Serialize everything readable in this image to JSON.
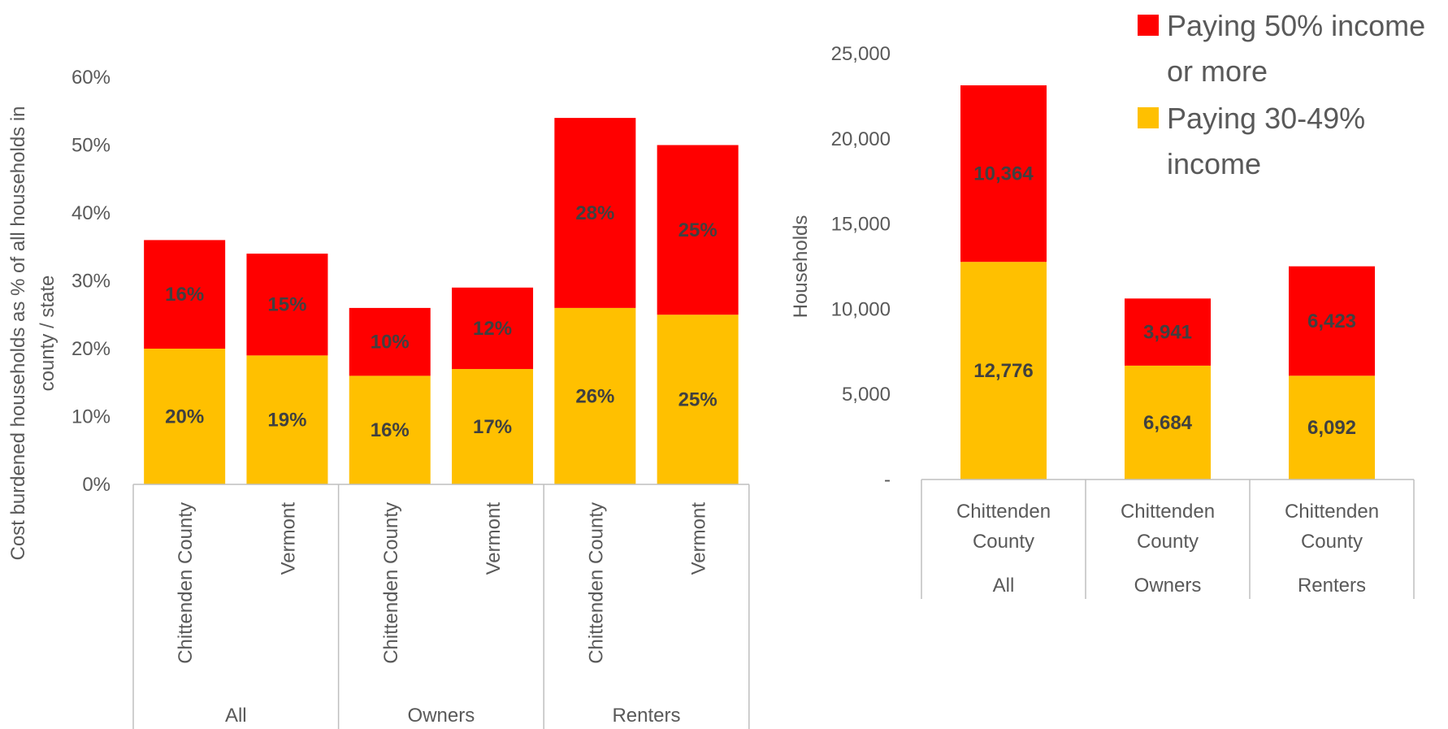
{
  "legend": {
    "items": [
      {
        "lines": [
          "Paying 50% income",
          "or more"
        ],
        "color": "#ff0000"
      },
      {
        "lines": [
          "Paying 30-49%",
          "income"
        ],
        "color": "#ffc000"
      }
    ]
  },
  "colors": {
    "upper": "#ff0000",
    "lower": "#ffc000",
    "axis": "#bfbfbf",
    "text": "#595959",
    "label": "#404040"
  },
  "chart_data": [
    {
      "type": "bar",
      "stacked": true,
      "ylabel": "Cost burdened households as % of all households in county / state",
      "ylim": [
        0,
        60
      ],
      "yticks": [
        "0%",
        "10%",
        "20%",
        "30%",
        "40%",
        "50%",
        "60%"
      ],
      "groups": [
        {
          "name": "All",
          "categories": [
            "Chittenden County",
            "Vermont"
          ]
        },
        {
          "name": "Owners",
          "categories": [
            "Chittenden County",
            "Vermont"
          ]
        },
        {
          "name": "Renters",
          "categories": [
            "Chittenden County",
            "Vermont"
          ]
        }
      ],
      "series": [
        {
          "name": "Paying 30-49% income",
          "values": [
            20,
            19,
            16,
            17,
            26,
            25
          ],
          "labels": [
            "20%",
            "19%",
            "16%",
            "17%",
            "26%",
            "25%"
          ]
        },
        {
          "name": "Paying 50% income or more",
          "values": [
            16,
            15,
            10,
            12,
            28,
            25
          ],
          "labels": [
            "16%",
            "15%",
            "10%",
            "12%",
            "28%",
            "25%"
          ]
        }
      ]
    },
    {
      "type": "bar",
      "stacked": true,
      "ylabel": "Households",
      "ylim": [
        0,
        25000
      ],
      "yticks": [
        "-",
        "5,000",
        "10,000",
        "15,000",
        "20,000",
        "25,000"
      ],
      "groups": [
        {
          "name": "All",
          "categories": [
            "Chittenden County"
          ]
        },
        {
          "name": "Owners",
          "categories": [
            "Chittenden County"
          ]
        },
        {
          "name": "Renters",
          "categories": [
            "Chittenden County"
          ]
        }
      ],
      "series": [
        {
          "name": "Paying 30-49% income",
          "values": [
            12776,
            6684,
            6092
          ],
          "labels": [
            "12,776",
            "6,684",
            "6,092"
          ]
        },
        {
          "name": "Paying 50% income or more",
          "values": [
            10364,
            3941,
            6423
          ],
          "labels": [
            "10,364",
            "3,941",
            "6,423"
          ]
        }
      ]
    }
  ]
}
